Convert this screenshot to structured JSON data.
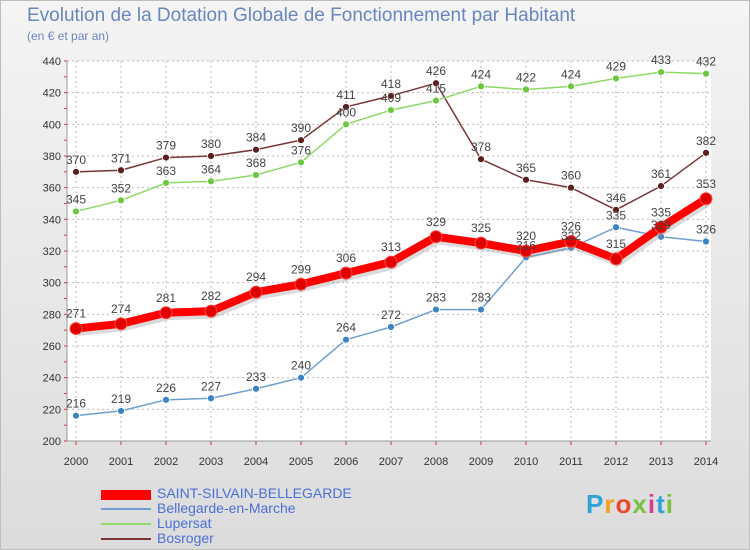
{
  "title": "Evolution de la Dotation Globale de Fonctionnement par Habitant",
  "subtitle": "(en € et par an)",
  "logo": {
    "text": "Proxiti",
    "letters": [
      "P",
      "r",
      "o",
      "x",
      "i",
      "t",
      "i"
    ],
    "letter_colors": [
      "#2ea3d8",
      "#f0a020",
      "#e84a2c",
      "#7ac143",
      "#d63b8f",
      "#2ea3d8",
      "#7ac143"
    ]
  },
  "chart_data": {
    "type": "line",
    "title": "Evolution de la Dotation Globale de Fonctionnement par Habitant",
    "ylabel": "(en € et par an)",
    "xlabel": "",
    "x": [
      "2000",
      "2001",
      "2002",
      "2003",
      "2004",
      "2005",
      "2006",
      "2007",
      "2008",
      "2009",
      "2010",
      "2011",
      "2012",
      "2013",
      "2014"
    ],
    "ylim": [
      200,
      440
    ],
    "yticks": [
      200,
      220,
      240,
      260,
      280,
      300,
      320,
      340,
      360,
      380,
      400,
      420,
      440
    ],
    "grid": true,
    "legend_position": "bottom-left",
    "series": [
      {
        "name": "SAINT-SILVAIN-BELLEGARDE",
        "color": "#ff0000",
        "dot": "#e00000",
        "weight": "thick",
        "values": [
          271,
          274,
          281,
          282,
          294,
          299,
          306,
          313,
          329,
          325,
          320,
          326,
          315,
          335,
          353
        ]
      },
      {
        "name": "Bellegarde-en-Marche",
        "color": "#6f9fd0",
        "dot": "#3b84c4",
        "weight": "thin",
        "values": [
          216,
          219,
          226,
          227,
          233,
          240,
          264,
          272,
          283,
          283,
          316,
          322,
          335,
          329,
          326
        ]
      },
      {
        "name": "Lupersat",
        "color": "#8ed968",
        "dot": "#6cc840",
        "weight": "thin",
        "values": [
          345,
          352,
          363,
          364,
          368,
          376,
          400,
          409,
          415,
          424,
          422,
          424,
          429,
          433,
          432
        ]
      },
      {
        "name": "Bosroger",
        "color": "#7a3636",
        "dot": "#5c1e1e",
        "weight": "thin",
        "values": [
          370,
          371,
          379,
          380,
          384,
          390,
          411,
          418,
          426,
          378,
          365,
          360,
          346,
          361,
          382
        ]
      }
    ]
  }
}
